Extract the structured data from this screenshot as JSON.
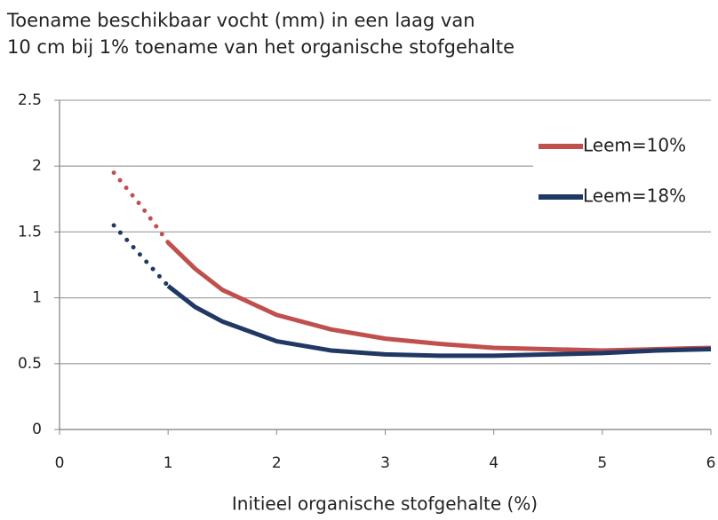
{
  "chart_data": {
    "type": "line",
    "title": [
      "Toename beschikbaar vocht (mm) in een laag van",
      "10 cm bij 1% toename van het organische stofgehalte"
    ],
    "xlabel": "Initieel organische stofgehalte (%)",
    "x": [
      0.5,
      0.75,
      1,
      1.25,
      1.5,
      2,
      2.5,
      3,
      3.5,
      4,
      4.5,
      5,
      5.5,
      6
    ],
    "series": [
      {
        "name": "Leem=10%",
        "color": "#c0504d",
        "values": [
          1.95,
          1.7,
          1.42,
          1.22,
          1.06,
          0.87,
          0.76,
          0.69,
          0.65,
          0.62,
          0.61,
          0.6,
          0.61,
          0.62
        ]
      },
      {
        "name": "Leem=18%",
        "color": "#1f3864",
        "values": [
          1.55,
          1.32,
          1.09,
          0.93,
          0.82,
          0.67,
          0.6,
          0.57,
          0.56,
          0.56,
          0.57,
          0.58,
          0.6,
          0.61
        ]
      }
    ],
    "dotted_below_x": 1,
    "xlim": [
      0,
      6
    ],
    "xticks": [
      0,
      1,
      2,
      3,
      4,
      5,
      6
    ],
    "ylim": [
      0,
      2.5
    ],
    "yticks": [
      0,
      0.5,
      1,
      1.5,
      2,
      2.5
    ],
    "grid": true,
    "legend": "upper right"
  }
}
